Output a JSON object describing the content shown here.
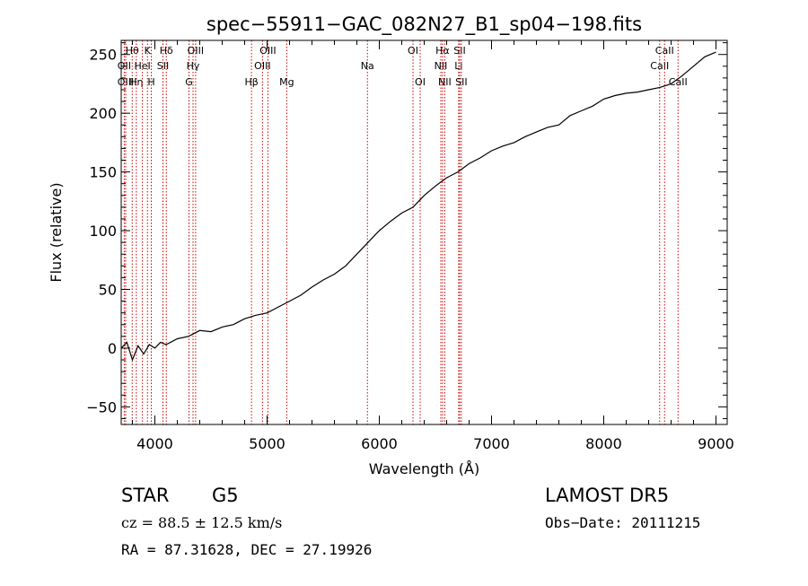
{
  "chart_data": {
    "type": "line",
    "title": "spec−55911−GAC_082N27_B1_sp04−198.fits",
    "xlabel": "Wavelength (Å)",
    "ylabel": "Flux (relative)",
    "xlim": [
      3700,
      9100
    ],
    "ylim": [
      -65,
      262
    ],
    "xticks": [
      4000,
      5000,
      6000,
      7000,
      8000,
      9000
    ],
    "yticks": [
      -50,
      0,
      50,
      100,
      150,
      200,
      250
    ],
    "grid": false,
    "line_color": "#000000",
    "marker_color": "#cc0000",
    "series": [
      {
        "x": [
          3700,
          3750,
          3800,
          3850,
          3900,
          3950,
          4000,
          4050,
          4100,
          4200,
          4300,
          4400,
          4500,
          4600,
          4700,
          4800,
          4900,
          5000,
          5100,
          5200,
          5300,
          5400,
          5500,
          5600,
          5700,
          5800,
          5900,
          6000,
          6100,
          6200,
          6300,
          6400,
          6500,
          6600,
          6700,
          6800,
          6900,
          7000,
          7100,
          7200,
          7300,
          7400,
          7500,
          7600,
          7700,
          7800,
          7900,
          8000,
          8100,
          8200,
          8300,
          8400,
          8500,
          8600,
          8700,
          8800,
          8900,
          9000
        ],
        "y": [
          0,
          5,
          -10,
          2,
          -5,
          3,
          0,
          5,
          3,
          8,
          10,
          15,
          14,
          18,
          20,
          25,
          28,
          30,
          35,
          40,
          45,
          52,
          58,
          63,
          70,
          80,
          90,
          100,
          108,
          115,
          120,
          130,
          138,
          145,
          150,
          157,
          162,
          168,
          172,
          175,
          180,
          184,
          188,
          190,
          198,
          202,
          206,
          212,
          215,
          217,
          218,
          220,
          222,
          225,
          232,
          240,
          248,
          252
        ]
      }
    ],
    "lines": [
      {
        "label": "Hθ",
        "x": 3798,
        "row": 1
      },
      {
        "label": "OII",
        "x": 3727,
        "row": 2
      },
      {
        "label": "OIII",
        "x": 3740,
        "row": 3
      },
      {
        "label": "Hη",
        "x": 3835,
        "row": 3
      },
      {
        "label": "HeI",
        "x": 3889,
        "row": 2
      },
      {
        "label": "K",
        "x": 3934,
        "row": 1
      },
      {
        "label": "H",
        "x": 3968,
        "row": 3
      },
      {
        "label": "SII",
        "x": 4072,
        "row": 2
      },
      {
        "label": "Hδ",
        "x": 4102,
        "row": 1
      },
      {
        "label": "G",
        "x": 4304,
        "row": 3
      },
      {
        "label": "Hγ",
        "x": 4340,
        "row": 2
      },
      {
        "label": "OIII",
        "x": 4363,
        "row": 1
      },
      {
        "label": "Hβ",
        "x": 4861,
        "row": 3
      },
      {
        "label": "OIII",
        "x": 4959,
        "row": 2
      },
      {
        "label": "OIII",
        "x": 5007,
        "row": 1
      },
      {
        "label": "Mg",
        "x": 5175,
        "row": 3
      },
      {
        "label": "Na",
        "x": 5894,
        "row": 2
      },
      {
        "label": "OI",
        "x": 6300,
        "row": 1
      },
      {
        "label": "OI",
        "x": 6364,
        "row": 3
      },
      {
        "label": "NII",
        "x": 6548,
        "row": 2
      },
      {
        "label": "Hα",
        "x": 6563,
        "row": 1
      },
      {
        "label": "NII",
        "x": 6583,
        "row": 3
      },
      {
        "label": "Li",
        "x": 6707,
        "row": 2
      },
      {
        "label": "SII",
        "x": 6716,
        "row": 1
      },
      {
        "label": "SII",
        "x": 6731,
        "row": 3
      },
      {
        "label": "CaII",
        "x": 8498,
        "row": 2
      },
      {
        "label": "CaII",
        "x": 8542,
        "row": 1
      },
      {
        "label": "CaII",
        "x": 8662,
        "row": 3
      }
    ]
  },
  "info": {
    "object_class": "STAR",
    "subclass": "G5",
    "survey": "LAMOST DR5",
    "redshift_text": "cz = 88.5 ± 12.5 km/s",
    "obs_date": "Obs−Date: 20111215",
    "coords": "RA =  87.31628, DEC =  27.19926"
  }
}
